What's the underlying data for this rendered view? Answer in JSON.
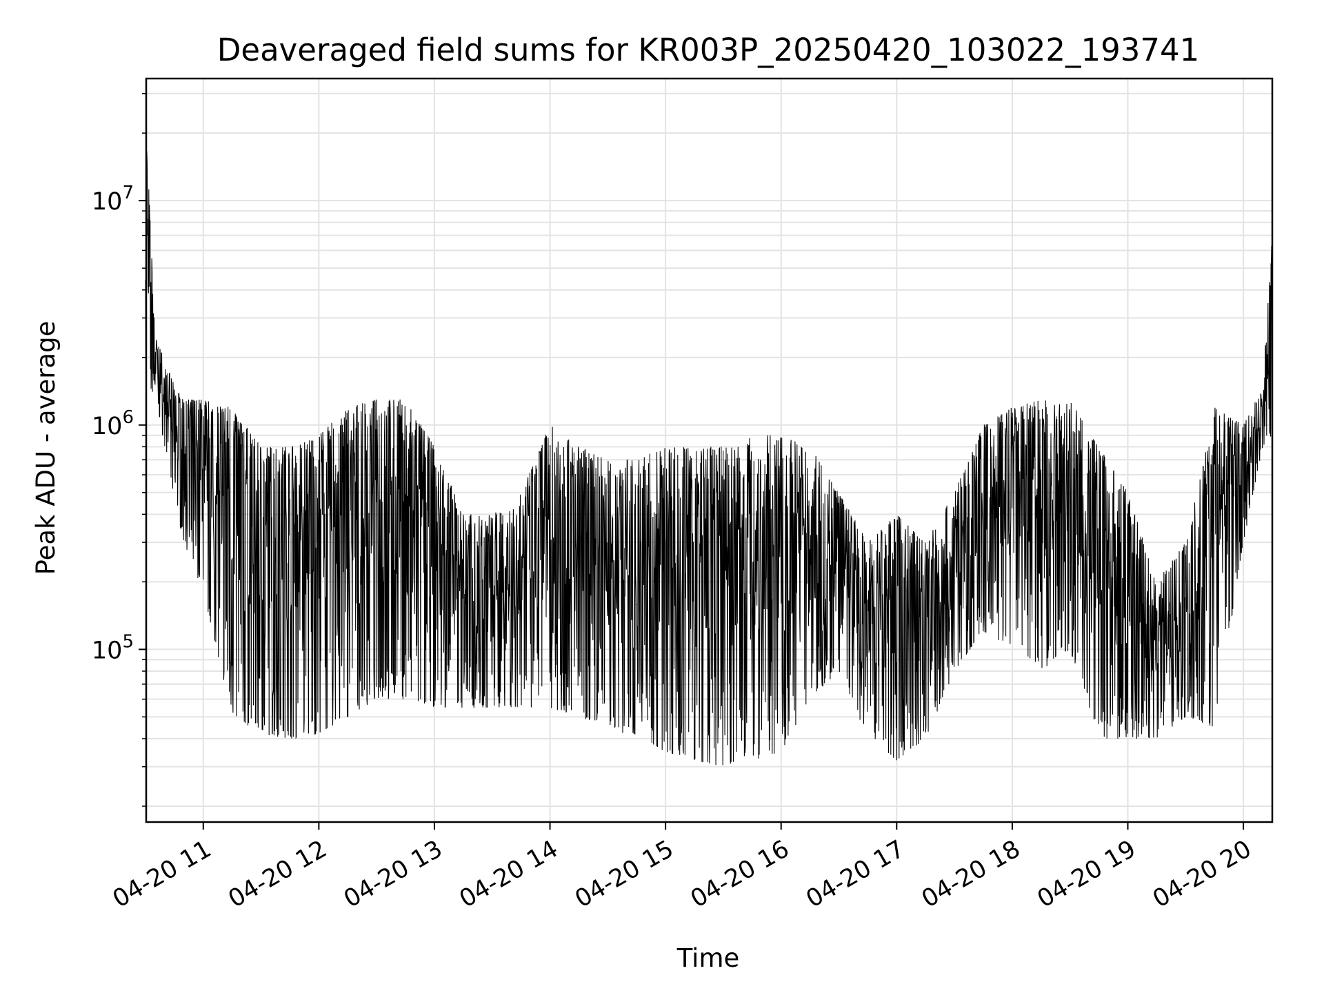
{
  "chart_data": {
    "type": "line",
    "title": "Deaveraged field sums for KR003P_20250420_103022_193741",
    "xlabel": "Time",
    "ylabel": "Peak ADU - average",
    "xlim": [
      "2025-04-20 10:30:22",
      "2025-04-20 20:15:00"
    ],
    "ylim": [
      17000,
      35000000
    ],
    "yscale": "log",
    "grid": true,
    "line_color": "#000000",
    "x_ticks": [
      {
        "value": "2025-04-20 11:00",
        "label": "04-20 11"
      },
      {
        "value": "2025-04-20 12:00",
        "label": "04-20 12"
      },
      {
        "value": "2025-04-20 13:00",
        "label": "04-20 13"
      },
      {
        "value": "2025-04-20 14:00",
        "label": "04-20 14"
      },
      {
        "value": "2025-04-20 15:00",
        "label": "04-20 15"
      },
      {
        "value": "2025-04-20 16:00",
        "label": "04-20 16"
      },
      {
        "value": "2025-04-20 17:00",
        "label": "04-20 17"
      },
      {
        "value": "2025-04-20 18:00",
        "label": "04-20 18"
      },
      {
        "value": "2025-04-20 19:00",
        "label": "04-20 19"
      },
      {
        "value": "2025-04-20 20:00",
        "label": "04-20 20"
      }
    ],
    "y_ticks": [
      {
        "value": 100000,
        "base": "10",
        "exp": "5"
      },
      {
        "value": 1000000,
        "base": "10",
        "exp": "6"
      },
      {
        "value": 10000000,
        "base": "10",
        "exp": "7"
      }
    ],
    "series": [
      {
        "x": [
          "2025-04-20 10:30",
          "2025-04-20 10:35",
          "2025-04-20 10:45",
          "2025-04-20 10:50",
          "2025-04-20 11:00",
          "2025-04-20 11:15",
          "2025-04-20 11:30",
          "2025-04-20 11:45",
          "2025-04-20 12:00",
          "2025-04-20 12:15",
          "2025-04-20 12:30",
          "2025-04-20 12:45",
          "2025-04-20 13:00",
          "2025-04-20 13:15",
          "2025-04-20 13:30",
          "2025-04-20 13:45",
          "2025-04-20 14:00",
          "2025-04-20 14:15",
          "2025-04-20 14:30",
          "2025-04-20 14:45",
          "2025-04-20 15:00",
          "2025-04-20 15:15",
          "2025-04-20 15:30",
          "2025-04-20 15:45",
          "2025-04-20 16:00",
          "2025-04-20 16:15",
          "2025-04-20 16:30",
          "2025-04-20 16:45",
          "2025-04-20 17:00",
          "2025-04-20 17:15",
          "2025-04-20 17:30",
          "2025-04-20 17:45",
          "2025-04-20 18:00",
          "2025-04-20 18:15",
          "2025-04-20 18:30",
          "2025-04-20 18:45",
          "2025-04-20 19:00",
          "2025-04-20 19:15",
          "2025-04-20 19:30",
          "2025-04-20 19:45",
          "2025-04-20 20:00",
          "2025-04-20 20:10",
          "2025-04-20 20:15"
        ],
        "y_low": [
          1400000,
          1400000,
          450000,
          300000,
          180000,
          50000,
          42000,
          40000,
          42000,
          50000,
          60000,
          60000,
          55000,
          55000,
          55000,
          55000,
          55000,
          50000,
          45000,
          40000,
          35000,
          32000,
          30000,
          32000,
          35000,
          60000,
          80000,
          40000,
          32000,
          40000,
          80000,
          120000,
          100000,
          80000,
          100000,
          40000,
          40000,
          40000,
          50000,
          45000,
          300000,
          800000,
          900000
        ],
        "y_high": [
          25000000,
          2500000,
          1500000,
          1300000,
          1300000,
          1200000,
          800000,
          800000,
          900000,
          1200000,
          1300000,
          1300000,
          800000,
          400000,
          400000,
          500000,
          1000000,
          800000,
          700000,
          700000,
          800000,
          800000,
          800000,
          900000,
          900000,
          800000,
          500000,
          300000,
          400000,
          300000,
          500000,
          1000000,
          1200000,
          1300000,
          1300000,
          800000,
          500000,
          200000,
          300000,
          1200000,
          1000000,
          1500000,
          7000000
        ]
      }
    ]
  }
}
